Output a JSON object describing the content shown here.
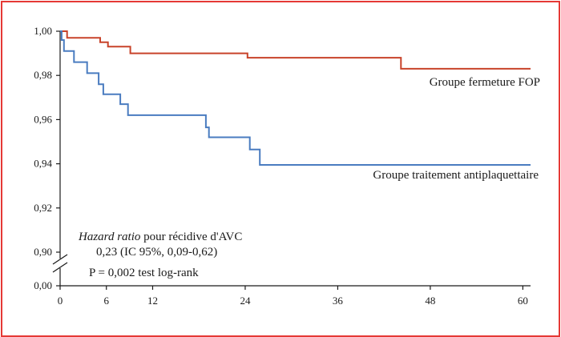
{
  "colors": {
    "frame": "#e53935",
    "fop": "#c8432a",
    "antiplaquettaire": "#4a7cc0",
    "axis": "#1a1a1a"
  },
  "chart_data": {
    "type": "line",
    "step": true,
    "title": "",
    "xlabel": "",
    "ylabel": "",
    "xlim": [
      0,
      61
    ],
    "xticks": [
      0,
      6,
      12,
      24,
      36,
      48,
      60
    ],
    "xtick_labels": [
      "0",
      "6",
      "12",
      "24",
      "36",
      "48",
      "60"
    ],
    "ylim": [
      0.9,
      1.0
    ],
    "yticks": [
      0.9,
      0.92,
      0.94,
      0.96,
      0.98,
      1.0
    ],
    "ytick_labels": [
      "0,90",
      "0,92",
      "0,94",
      "0,96",
      "0,98",
      "1,00"
    ],
    "ybreak": true,
    "ybreak_bottom_label": "0,00",
    "grid": false,
    "series": [
      {
        "key": "fop",
        "name": "Groupe fermeture FOP",
        "color_key": "fop",
        "points": [
          [
            0,
            1.0
          ],
          [
            0.9,
            0.997
          ],
          [
            5.2,
            0.995
          ],
          [
            6.2,
            0.993
          ],
          [
            9.1,
            0.99
          ],
          [
            24.3,
            0.988
          ],
          [
            44.2,
            0.983
          ],
          [
            61,
            0.983
          ]
        ]
      },
      {
        "key": "antiplaquettaire",
        "name": "Groupe traitement antiplaquettaire",
        "color_key": "antiplaquettaire",
        "points": [
          [
            0,
            1.0
          ],
          [
            0.2,
            0.996
          ],
          [
            0.5,
            0.991
          ],
          [
            1.8,
            0.986
          ],
          [
            3.5,
            0.981
          ],
          [
            5.0,
            0.976
          ],
          [
            5.6,
            0.9715
          ],
          [
            7.8,
            0.967
          ],
          [
            8.8,
            0.962
          ],
          [
            18.9,
            0.9565
          ],
          [
            19.3,
            0.952
          ],
          [
            24.6,
            0.9465
          ],
          [
            25.9,
            0.9395
          ],
          [
            61,
            0.9395
          ]
        ]
      }
    ],
    "annotations": {
      "hr_italic": "Hazard ratio",
      "hr_rest": " pour récidive d'AVC",
      "ci": "0,23 (IC 95%, 0,09-0,62)",
      "p": "P = 0,002 test log-rank"
    }
  }
}
